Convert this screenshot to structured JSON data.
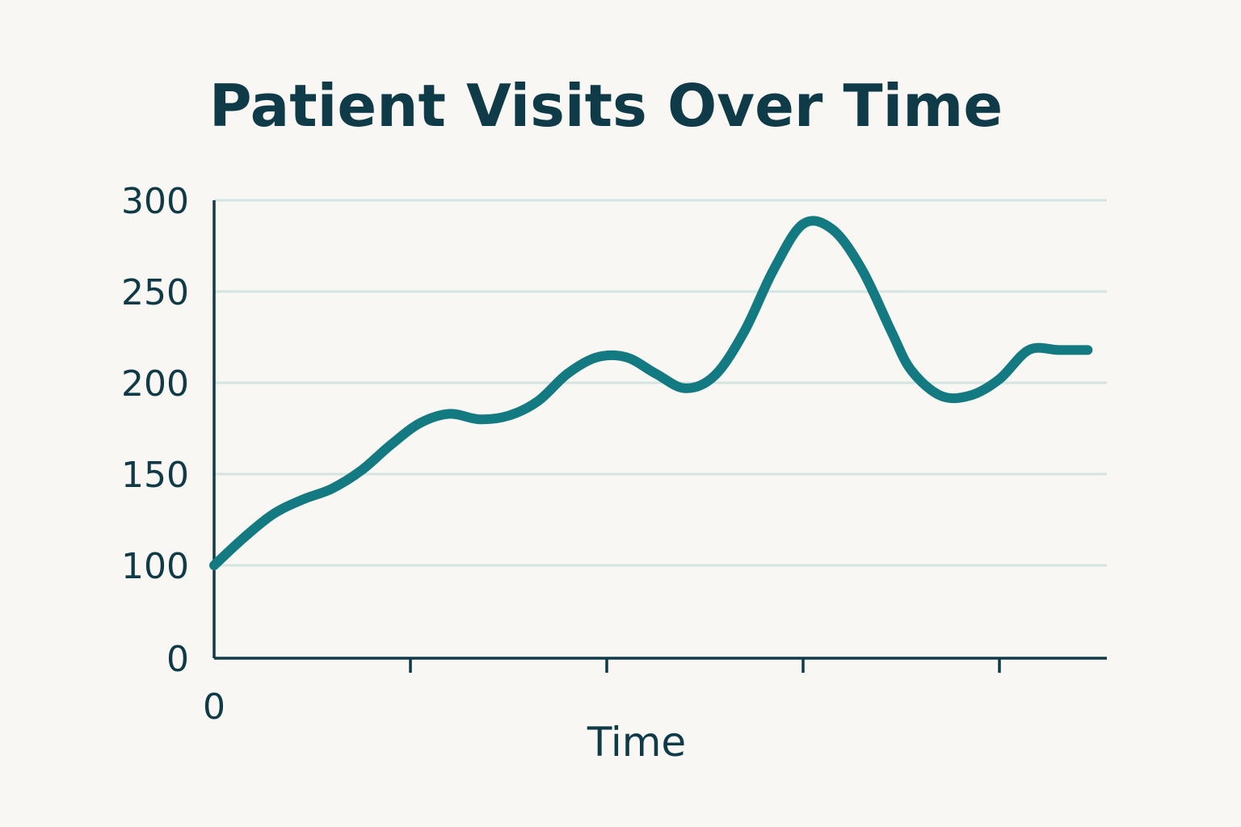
{
  "chart_data": {
    "type": "line",
    "title": "Patient Visits Over Time",
    "xlabel": "Time",
    "ylabel": "",
    "ylim": [
      0,
      300
    ],
    "y_tick_labels": [
      "0",
      "100",
      "150",
      "200",
      "250",
      "300"
    ],
    "y_ticks": [
      0,
      100,
      150,
      200,
      250,
      300
    ],
    "x_tick_labels": [
      "0",
      "",
      "",
      "",
      "",
      ""
    ],
    "x_ticks": [
      0,
      1,
      2,
      3,
      4,
      5
    ],
    "xlim": [
      0,
      4.5
    ],
    "grid": true,
    "line_color": "#137a82",
    "series": [
      {
        "x": [
          0,
          0.15,
          0.3,
          0.45,
          0.6,
          0.75,
          0.9,
          1.05,
          1.2,
          1.35,
          1.5,
          1.65,
          1.8,
          1.95,
          2.1,
          2.25,
          2.4,
          2.55,
          2.7,
          2.85,
          3.0,
          3.15,
          3.3,
          3.45,
          3.55,
          3.7,
          3.85,
          4.0,
          4.15,
          4.3,
          4.45
        ],
        "y": [
          100,
          115,
          128,
          136,
          142,
          152,
          166,
          178,
          183,
          180,
          182,
          190,
          205,
          214,
          214,
          205,
          197,
          204,
          228,
          262,
          287,
          284,
          262,
          228,
          207,
          193,
          193,
          202,
          218,
          218,
          218
        ]
      }
    ]
  }
}
